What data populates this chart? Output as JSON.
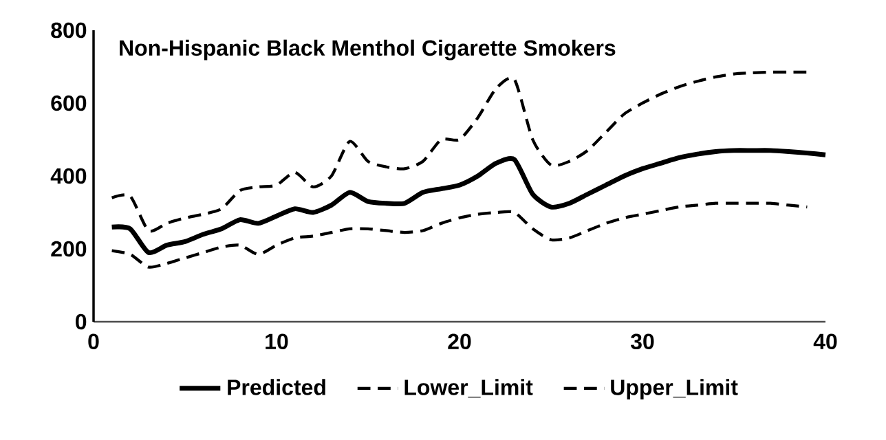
{
  "chart_data": {
    "type": "line",
    "title": "Non-Hispanic Black Menthol Cigarette Smokers",
    "xlim": [
      0,
      40
    ],
    "ylim": [
      0,
      800
    ],
    "xticks": [
      0,
      10,
      20,
      30,
      40
    ],
    "yticks": [
      0,
      200,
      400,
      600,
      800
    ],
    "grid": false,
    "legend": "bottom",
    "marker": "none",
    "series": [
      {
        "name": "Predicted",
        "color": "#000000",
        "line_style": "solid",
        "x": [
          1,
          2,
          3,
          4,
          5,
          6,
          7,
          8,
          9,
          10,
          11,
          12,
          13,
          14,
          15,
          16,
          17,
          18,
          19,
          20,
          21,
          22,
          23,
          24,
          25,
          26,
          27,
          28,
          29,
          30,
          31,
          32,
          33,
          34,
          35,
          36,
          37,
          38,
          39,
          40
        ],
        "values": [
          260,
          255,
          190,
          210,
          220,
          240,
          255,
          280,
          270,
          290,
          310,
          300,
          320,
          355,
          330,
          325,
          325,
          355,
          365,
          375,
          400,
          435,
          445,
          350,
          315,
          325,
          350,
          375,
          400,
          420,
          435,
          450,
          460,
          467,
          470,
          470,
          470,
          467,
          463,
          458
        ]
      },
      {
        "name": "Lower_Limit",
        "color": "#000000",
        "line_style": "dashed",
        "x": [
          1,
          2,
          3,
          4,
          5,
          6,
          7,
          8,
          9,
          10,
          11,
          12,
          13,
          14,
          15,
          16,
          17,
          18,
          19,
          20,
          21,
          22,
          23,
          24,
          25,
          26,
          27,
          28,
          29,
          30,
          31,
          32,
          33,
          34,
          35,
          36,
          37,
          38,
          39
        ],
        "values": [
          195,
          185,
          150,
          160,
          175,
          190,
          205,
          210,
          185,
          210,
          230,
          235,
          245,
          255,
          255,
          250,
          245,
          250,
          270,
          285,
          295,
          300,
          300,
          255,
          225,
          230,
          250,
          270,
          285,
          295,
          305,
          315,
          320,
          325,
          325,
          325,
          325,
          320,
          315
        ]
      },
      {
        "name": "Upper_Limit",
        "color": "#000000",
        "line_style": "dashed",
        "x": [
          1,
          2,
          3,
          4,
          5,
          6,
          7,
          8,
          9,
          10,
          11,
          12,
          13,
          14,
          15,
          16,
          17,
          18,
          19,
          20,
          21,
          22,
          23,
          24,
          25,
          26,
          27,
          28,
          29,
          30,
          31,
          32,
          33,
          34,
          35,
          36,
          37,
          38,
          39
        ],
        "values": [
          340,
          345,
          250,
          270,
          285,
          295,
          310,
          360,
          370,
          375,
          410,
          370,
          400,
          495,
          440,
          425,
          420,
          440,
          500,
          500,
          560,
          640,
          665,
          500,
          430,
          440,
          470,
          520,
          570,
          600,
          625,
          645,
          660,
          672,
          680,
          683,
          685,
          685,
          685
        ]
      }
    ]
  }
}
